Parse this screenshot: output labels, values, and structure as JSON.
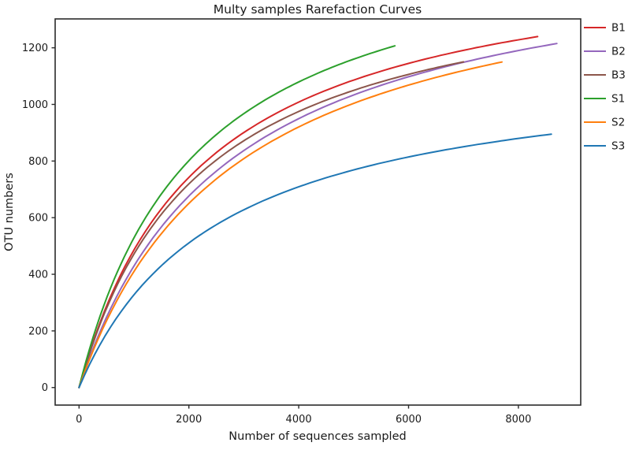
{
  "chart_data": {
    "type": "line",
    "title": "Multy samples Rarefaction Curves",
    "xlabel": "Number of sequences sampled",
    "ylabel": "OTU numbers",
    "xlim": [
      -435,
      9135
    ],
    "ylim": [
      -62,
      1302
    ],
    "xticks": [
      0,
      2000,
      4000,
      6000,
      8000
    ],
    "yticks": [
      0,
      200,
      400,
      600,
      800,
      1000,
      1200
    ],
    "grid": false,
    "legend_position": "outside-right",
    "line_width": 2,
    "frame_color": "#2b2b2b",
    "series": [
      {
        "name": "B1",
        "color": "#d62728",
        "x_end": 8350,
        "y_end": 1240,
        "model": {
          "type": "saturating",
          "A": 1571,
          "B": 2233
        },
        "points": [
          [
            0,
            0
          ],
          [
            500,
            287
          ],
          [
            1000,
            486
          ],
          [
            2000,
            742
          ],
          [
            3000,
            901
          ],
          [
            4000,
            1008
          ],
          [
            5000,
            1086
          ],
          [
            6000,
            1145
          ],
          [
            7000,
            1191
          ],
          [
            8000,
            1228
          ],
          [
            8350,
            1240
          ]
        ]
      },
      {
        "name": "B2",
        "color": "#9467bd",
        "x_end": 8700,
        "y_end": 1215,
        "model": {
          "type": "saturating",
          "A": 1594,
          "B": 2713
        },
        "points": [
          [
            0,
            0
          ],
          [
            500,
            248
          ],
          [
            1000,
            429
          ],
          [
            2000,
            676
          ],
          [
            3000,
            837
          ],
          [
            4000,
            950
          ],
          [
            5000,
            1033
          ],
          [
            6000,
            1098
          ],
          [
            7000,
            1149
          ],
          [
            8000,
            1190
          ],
          [
            8700,
            1215
          ]
        ]
      },
      {
        "name": "B3",
        "color": "#8c564b",
        "x_end": 7000,
        "y_end": 1150,
        "model": {
          "type": "saturating",
          "A": 1513,
          "B": 2207
        },
        "points": [
          [
            0,
            0
          ],
          [
            500,
            280
          ],
          [
            1000,
            472
          ],
          [
            2000,
            719
          ],
          [
            3000,
            872
          ],
          [
            4000,
            975
          ],
          [
            5000,
            1050
          ],
          [
            6000,
            1106
          ],
          [
            7000,
            1150
          ]
        ]
      },
      {
        "name": "S1",
        "color": "#2ca02c",
        "x_end": 5750,
        "y_end": 1205,
        "model": {
          "type": "saturating",
          "A": 1653,
          "B": 2126
        },
        "points": [
          [
            0,
            0
          ],
          [
            500,
            315
          ],
          [
            1000,
            529
          ],
          [
            2000,
            801
          ],
          [
            3000,
            967
          ],
          [
            4000,
            1079
          ],
          [
            5000,
            1160
          ],
          [
            5750,
            1205
          ]
        ]
      },
      {
        "name": "S2",
        "color": "#ff7f0e",
        "x_end": 7700,
        "y_end": 1150,
        "model": {
          "type": "saturating",
          "A": 1574,
          "B": 2841
        },
        "points": [
          [
            0,
            0
          ],
          [
            500,
            236
          ],
          [
            1000,
            410
          ],
          [
            2000,
            650
          ],
          [
            3000,
            808
          ],
          [
            4000,
            920
          ],
          [
            5000,
            1004
          ],
          [
            6000,
            1068
          ],
          [
            7000,
            1120
          ],
          [
            7700,
            1150
          ]
        ]
      },
      {
        "name": "S3",
        "color": "#1f77b4",
        "x_end": 8600,
        "y_end": 895,
        "model": {
          "type": "saturating",
          "A": 1159,
          "B": 2539
        },
        "points": [
          [
            0,
            0
          ],
          [
            500,
            191
          ],
          [
            1000,
            328
          ],
          [
            2000,
            511
          ],
          [
            3000,
            628
          ],
          [
            4000,
            709
          ],
          [
            5000,
            769
          ],
          [
            6000,
            814
          ],
          [
            7000,
            851
          ],
          [
            8000,
            880
          ],
          [
            8600,
            895
          ]
        ]
      }
    ]
  }
}
